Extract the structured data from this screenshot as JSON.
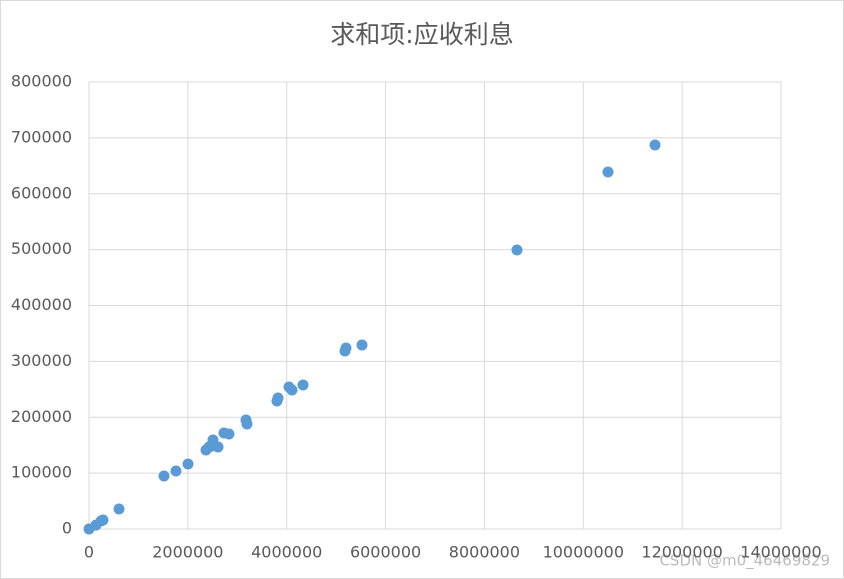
{
  "chart_data": {
    "type": "scatter",
    "title": "求和项:应收利息",
    "x": [
      0,
      140000,
      243000,
      283000,
      607000,
      1517000,
      1760000,
      2003000,
      2367000,
      2428000,
      2508000,
      2488000,
      2610000,
      2731000,
      2832000,
      3176000,
      3196000,
      3803000,
      3824000,
      4046000,
      4107000,
      4330000,
      5179000,
      5199000,
      5523000,
      8659000,
      10500000,
      11451000
    ],
    "values": [
      0,
      7000,
      14300,
      16100,
      35800,
      94800,
      103800,
      116300,
      141400,
      146700,
      159300,
      148500,
      146700,
      171800,
      170000,
      195100,
      187900,
      229100,
      234400,
      254100,
      248700,
      257700,
      318600,
      323900,
      329300,
      499300,
      639000,
      687300
    ],
    "color": "#5b9bd5",
    "xlim": [
      0,
      14000000
    ],
    "xticks": [
      0,
      2000000,
      4000000,
      6000000,
      8000000,
      10000000,
      12000000,
      14000000
    ],
    "ylim": [
      0,
      800000
    ],
    "yticks": [
      0,
      100000,
      200000,
      300000,
      400000,
      500000,
      600000,
      700000,
      800000
    ],
    "grid": true
  },
  "watermark": "CSDN @m0_46469829"
}
